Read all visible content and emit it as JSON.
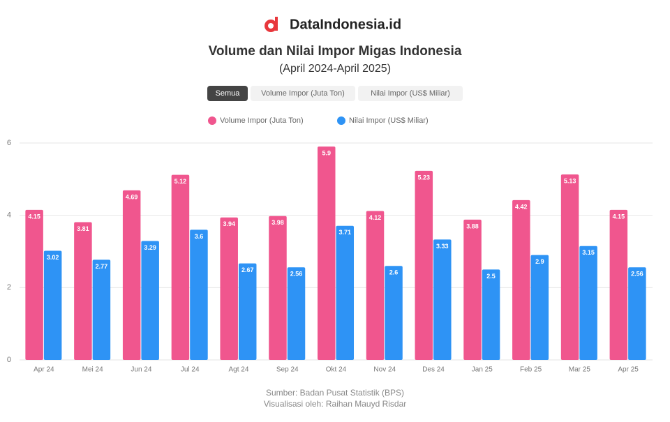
{
  "brand": "DataIndonesia.id",
  "buttons": [
    "Semua",
    "Volume Impor (Juta Ton)",
    "Nilai Impor (US$ Miliar)"
  ],
  "source": [
    "Sumber: Badan Pusat Statistik (BPS)",
    "Visualisasi oleh: Raihan Mauyd Risdar"
  ],
  "chart_data": {
    "type": "bar",
    "title": "Volume dan Nilai Impor Migas Indonesia",
    "subtitle": "(April 2024-April 2025)",
    "categories": [
      "Apr 24",
      "Mei 24",
      "Jun 24",
      "Jul 24",
      "Agt 24",
      "Sep 24",
      "Okt 24",
      "Nov 24",
      "Des 24",
      "Jan 25",
      "Feb 25",
      "Mar 25",
      "Apr 25"
    ],
    "series": [
      {
        "name": "Volume Impor (Juta Ton)",
        "color": "#f0568e",
        "values": [
          4.15,
          3.81,
          4.69,
          5.12,
          3.94,
          3.98,
          5.9,
          4.12,
          5.23,
          3.88,
          4.42,
          5.13,
          4.15
        ]
      },
      {
        "name": "Nilai Impor (US$ Miliar)",
        "color": "#2e93f5",
        "values": [
          3.02,
          2.77,
          3.29,
          3.6,
          2.67,
          2.56,
          3.71,
          2.6,
          3.33,
          2.5,
          2.9,
          3.15,
          2.56
        ]
      }
    ],
    "ylim": [
      0,
      6
    ],
    "yticks": [
      0,
      2,
      4,
      6
    ],
    "grid": true
  }
}
